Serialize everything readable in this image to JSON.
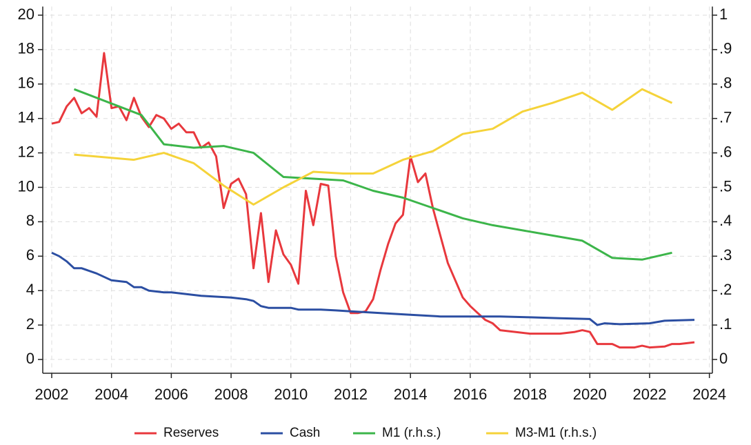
{
  "chart_data": {
    "type": "line",
    "xlim": [
      2001.7,
      2024.1
    ],
    "xticks": [
      2002,
      2004,
      2006,
      2008,
      2010,
      2012,
      2014,
      2016,
      2018,
      2020,
      2022,
      2024
    ],
    "ylim": [
      -0.8,
      20.5
    ],
    "yticks": [
      0,
      2,
      4,
      6,
      8,
      10,
      12,
      14,
      16,
      18,
      20
    ],
    "y2lim": [
      -0.04,
      1.025
    ],
    "y2ticks": [
      0,
      {
        "value": 0.1,
        "label": ".1"
      },
      {
        "value": 0.2,
        "label": ".2"
      },
      {
        "value": 0.3,
        "label": ".3"
      },
      {
        "value": 0.4,
        "label": ".4"
      },
      {
        "value": 0.5,
        "label": ".5"
      },
      {
        "value": 0.6,
        "label": ".6"
      },
      {
        "value": 0.7,
        "label": ".7"
      },
      {
        "value": 0.8,
        "label": ".8"
      },
      {
        "value": 0.9,
        "label": ".9"
      },
      1
    ],
    "grid": true,
    "legend": "bottom",
    "series": [
      {
        "name": "Reserves",
        "color": "#e8383d",
        "x": [
          2002,
          2002.25,
          2002.5,
          2002.75,
          2003,
          2003.25,
          2003.5,
          2003.75,
          2004,
          2004.25,
          2004.5,
          2004.75,
          2005,
          2005.25,
          2005.5,
          2005.75,
          2006,
          2006.25,
          2006.5,
          2006.75,
          2007,
          2007.25,
          2007.5,
          2007.75,
          2008,
          2008.25,
          2008.5,
          2008.75,
          2009,
          2009.25,
          2009.5,
          2009.75,
          2010,
          2010.25,
          2010.5,
          2010.75,
          2011,
          2011.25,
          2011.5,
          2011.75,
          2012,
          2012.25,
          2012.5,
          2012.75,
          2013,
          2013.25,
          2013.5,
          2013.75,
          2014,
          2014.25,
          2014.5,
          2014.75,
          2015,
          2015.25,
          2015.5,
          2015.75,
          2016,
          2016.25,
          2016.5,
          2016.75,
          2017,
          2017.5,
          2018,
          2018.5,
          2019,
          2019.5,
          2019.75,
          2020,
          2020.25,
          2020.75,
          2021,
          2021.5,
          2021.75,
          2022,
          2022.5,
          2022.75,
          2023,
          2023.5
        ],
        "values": [
          13.7,
          13.8,
          14.7,
          15.2,
          14.3,
          14.6,
          14.1,
          17.8,
          14.6,
          14.7,
          13.9,
          15.2,
          14.1,
          13.5,
          14.2,
          14.0,
          13.4,
          13.7,
          13.2,
          13.2,
          12.3,
          12.6,
          11.8,
          8.8,
          10.2,
          10.5,
          9.6,
          5.3,
          8.5,
          4.5,
          7.5,
          6.1,
          5.5,
          4.4,
          9.8,
          7.8,
          10.2,
          10.1,
          6.0,
          3.9,
          2.7,
          2.7,
          2.8,
          3.5,
          5.2,
          6.7,
          7.9,
          8.4,
          11.8,
          10.3,
          10.8,
          8.8,
          7.2,
          5.6,
          4.6,
          3.6,
          3.1,
          2.7,
          2.3,
          2.1,
          1.7,
          1.6,
          1.5,
          1.5,
          1.5,
          1.6,
          1.7,
          1.6,
          0.9,
          0.9,
          0.7,
          0.7,
          0.8,
          0.7,
          0.75,
          0.9,
          0.9,
          1.0
        ]
      },
      {
        "name": "Cash",
        "color": "#2b4ea2",
        "x": [
          2002,
          2002.25,
          2002.5,
          2002.75,
          2003,
          2003.5,
          2004,
          2004.5,
          2004.75,
          2005,
          2005.25,
          2005.75,
          2006,
          2006.5,
          2007,
          2008,
          2008.5,
          2008.75,
          2009,
          2009.25,
          2010,
          2010.25,
          2011,
          2011.5,
          2012,
          2013,
          2014,
          2015,
          2016,
          2017,
          2018,
          2019,
          2020,
          2020.25,
          2020.5,
          2021,
          2022,
          2022.5,
          2023.5
        ],
        "values": [
          6.2,
          6.0,
          5.7,
          5.3,
          5.3,
          5.0,
          4.6,
          4.5,
          4.2,
          4.2,
          4.0,
          3.9,
          3.9,
          3.8,
          3.7,
          3.6,
          3.5,
          3.4,
          3.1,
          3.0,
          3.0,
          2.9,
          2.9,
          2.85,
          2.8,
          2.7,
          2.6,
          2.5,
          2.5,
          2.5,
          2.45,
          2.4,
          2.35,
          2.0,
          2.1,
          2.05,
          2.1,
          2.25,
          2.3
        ]
      },
      {
        "name": "M1 (r.h.s.)",
        "color": "#3cb54a",
        "axis": "y2",
        "x": [
          2002.75,
          2005,
          2005.75,
          2006.75,
          2007.75,
          2008.75,
          2009.75,
          2011.75,
          2012.75,
          2013.75,
          2014.75,
          2015.75,
          2016.75,
          2017.75,
          2018.75,
          2019.75,
          2020.75,
          2021.75,
          2022.75
        ],
        "values": [
          0.785,
          0.71,
          0.625,
          0.615,
          0.62,
          0.6,
          0.53,
          0.52,
          0.49,
          0.47,
          0.44,
          0.41,
          0.39,
          0.375,
          0.36,
          0.345,
          0.295,
          0.29,
          0.31
        ]
      },
      {
        "name": "M3-M1 (r.h.s.)",
        "color": "#f5d33a",
        "axis": "y2",
        "x": [
          2002.75,
          2004.75,
          2005.75,
          2006.75,
          2007.75,
          2008.75,
          2009.75,
          2010.75,
          2011.75,
          2012.75,
          2013.75,
          2014.75,
          2015.75,
          2016.75,
          2017.75,
          2018.75,
          2019.75,
          2020.75,
          2021.75,
          2022.75
        ],
        "values": [
          0.595,
          0.58,
          0.6,
          0.57,
          0.505,
          0.45,
          0.5,
          0.545,
          0.54,
          0.54,
          0.58,
          0.605,
          0.655,
          0.67,
          0.72,
          0.745,
          0.775,
          0.725,
          0.785,
          0.745
        ]
      }
    ]
  }
}
